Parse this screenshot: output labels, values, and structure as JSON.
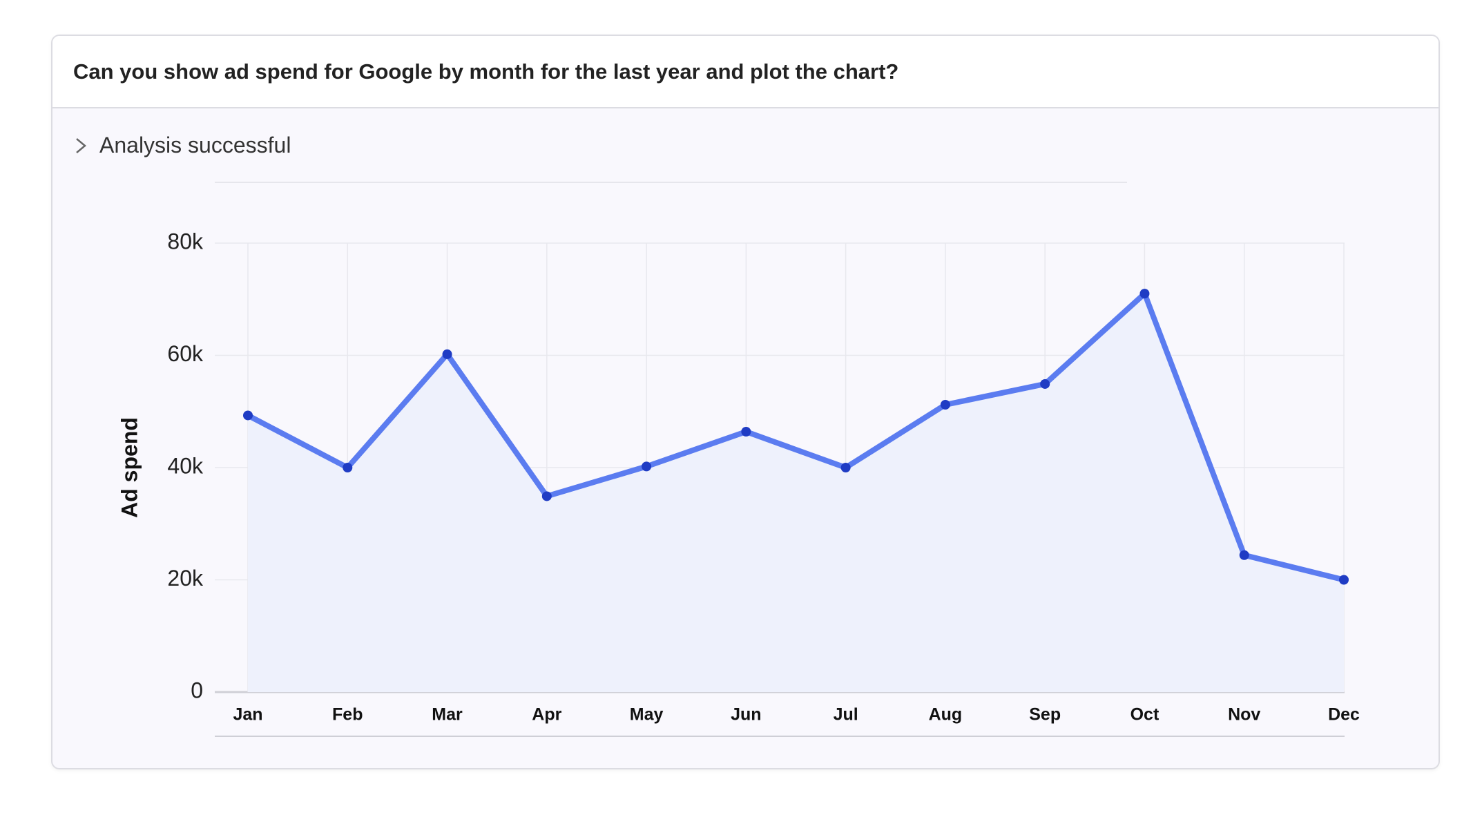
{
  "header": {
    "title": "Can you show ad spend for Google by month for the last year and plot the chart?"
  },
  "status": {
    "label": "Analysis successful"
  },
  "chart_data": {
    "type": "line",
    "y_label": "Ad spend",
    "categories": [
      "Jan",
      "Feb",
      "Mar",
      "Apr",
      "May",
      "Jun",
      "Jul",
      "Aug",
      "Sep",
      "Oct",
      "Nov",
      "Dec"
    ],
    "series": [
      {
        "name": "Ad spend",
        "color": "#5b7cf0",
        "values": [
          49300,
          40000,
          60200,
          34900,
          40200,
          46400,
          40000,
          51200,
          54900,
          71000,
          24400,
          20000
        ]
      }
    ],
    "area_color": "#eef1fc",
    "marker_color": "#1f3cc4",
    "ylim": [
      0,
      80000
    ],
    "yticks": [
      0,
      {
        "value": 20000,
        "label": "20k"
      },
      {
        "value": 40000,
        "label": "40k"
      },
      {
        "value": 60000,
        "label": "60k"
      },
      {
        "value": 80000,
        "label": "80k"
      }
    ],
    "grid": true
  }
}
